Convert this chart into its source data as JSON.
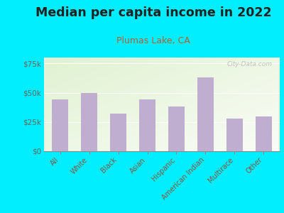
{
  "title": "Median per capita income in 2022",
  "subtitle": "Plumas Lake, CA",
  "categories": [
    "All",
    "White",
    "Black",
    "Asian",
    "Hispanic",
    "American Indian",
    "Multirace",
    "Other"
  ],
  "values": [
    44000,
    49500,
    32000,
    44500,
    38000,
    63000,
    28000,
    30000
  ],
  "bar_color": "#c0aed0",
  "title_fontsize": 12.5,
  "title_color": "#222222",
  "subtitle_color": "#b06040",
  "subtitle_fontsize": 9,
  "tick_color": "#885544",
  "background_outer": "#00eeff",
  "ylim": [
    0,
    80000
  ],
  "yticks": [
    0,
    25000,
    50000,
    75000
  ],
  "ytick_labels": [
    "$0",
    "$25k",
    "$50k",
    "$75k"
  ],
  "watermark": "City-Data.com",
  "chart_bg_color": "#e8f2e0"
}
